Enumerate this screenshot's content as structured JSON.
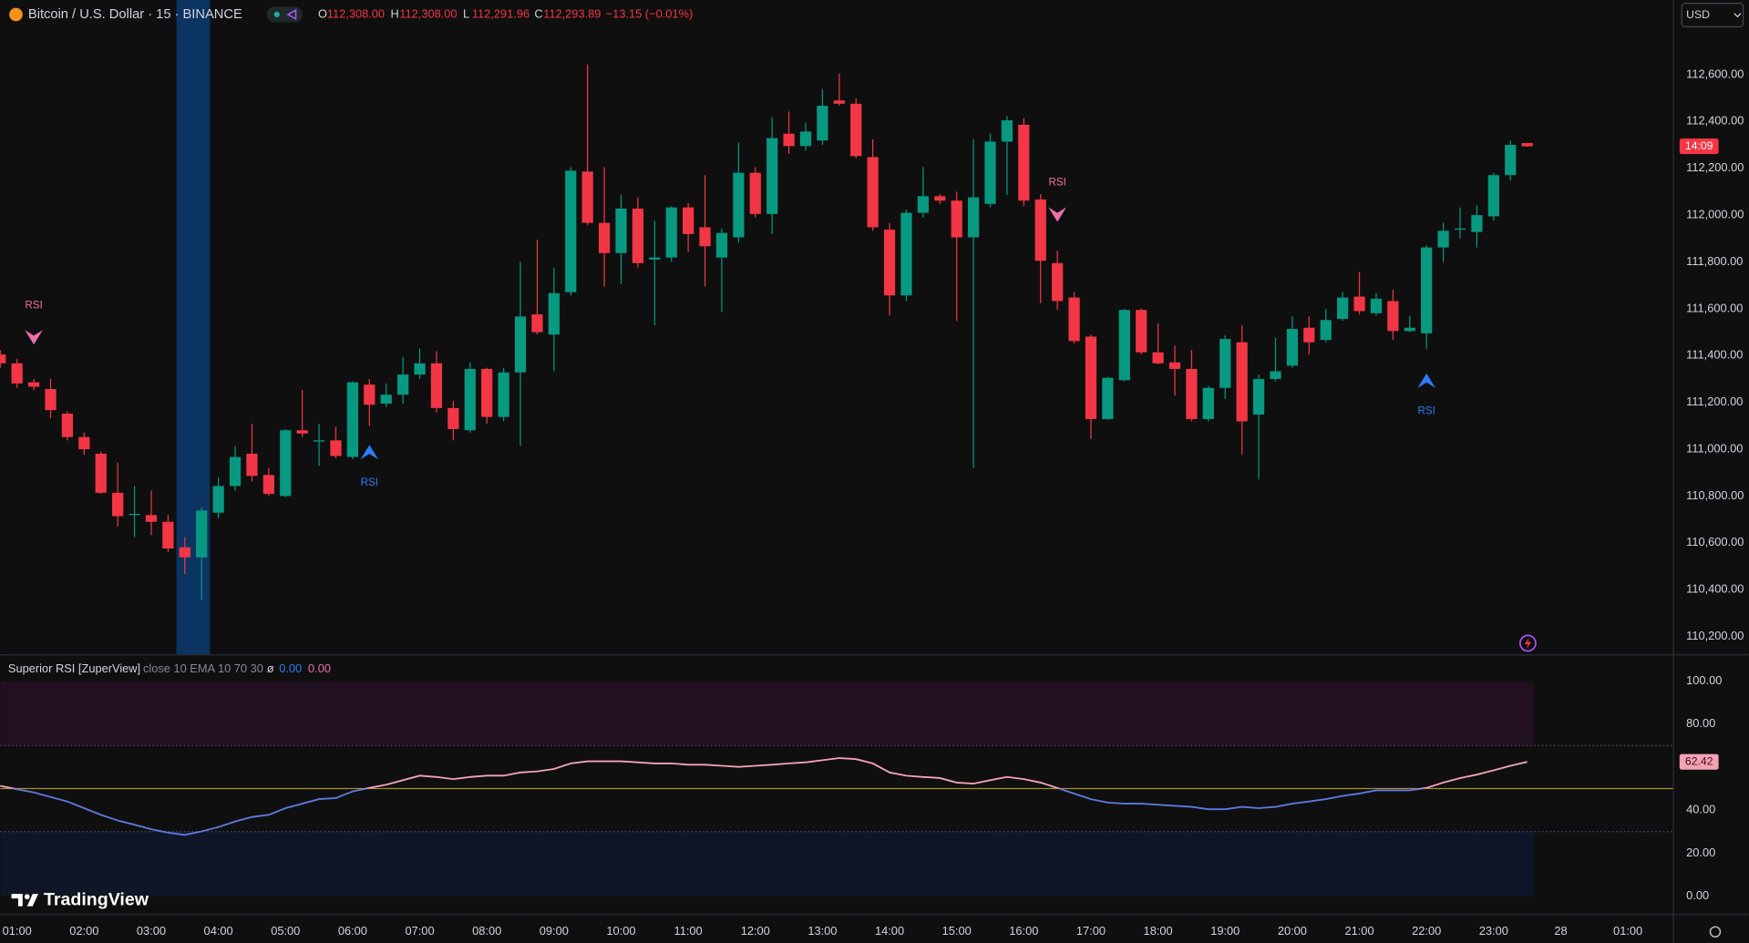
{
  "chart_data": [
    {
      "type": "candlestick",
      "title": "Bitcoin / U.S. Dollar · 15 · BINANCE",
      "legend": {
        "keys": [
          "O",
          "H",
          "L",
          "C"
        ],
        "values": [
          "112,308.00",
          "112,308.00",
          "112,291.96",
          "112,293.89"
        ],
        "change": "−13.15 (−0.01%)"
      },
      "currency": "USD",
      "countdown": "14:09",
      "brand": "TradingView",
      "up_color": "#089981",
      "down_color": "#f23645",
      "x": [
        0.75,
        1,
        1.25,
        1.5,
        1.75,
        2,
        2.25,
        2.5,
        2.75,
        3,
        3.25,
        3.5,
        3.75,
        4,
        4.25,
        4.5,
        4.75,
        5,
        5.25,
        5.5,
        5.75,
        6,
        6.25,
        6.5,
        6.75,
        7,
        7.25,
        7.5,
        7.75,
        8,
        8.25,
        8.5,
        8.75,
        9,
        9.25,
        9.5,
        9.75,
        10,
        10.25,
        10.5,
        10.75,
        11,
        11.25,
        11.5,
        11.75,
        12,
        12.25,
        12.5,
        12.75,
        13,
        13.25,
        13.5,
        13.75,
        14,
        14.25,
        14.5,
        14.75,
        15,
        15.25,
        15.5,
        15.75,
        16,
        16.25,
        16.5,
        16.75,
        17,
        17.25,
        17.5,
        17.75,
        18,
        18.25,
        18.5,
        18.75,
        19,
        19.25,
        19.5,
        19.75,
        20,
        20.25,
        20.5,
        20.75,
        21,
        21.25,
        21.5,
        21.75,
        22,
        22.25,
        22.5,
        22.75,
        23,
        23.25,
        23.5
      ],
      "open": [
        111405,
        111367,
        111286,
        111257,
        111152,
        111052,
        110981,
        110814,
        110719,
        110719,
        110690,
        110581,
        110538,
        110729,
        110843,
        110981,
        110890,
        110800,
        111081,
        111033,
        111038,
        110967,
        111276,
        111195,
        111233,
        111319,
        111367,
        111176,
        111081,
        111343,
        111138,
        111328,
        111576,
        111490,
        111671,
        112186,
        111967,
        111838,
        112028,
        111810,
        111819,
        112033,
        111948,
        111819,
        111905,
        112181,
        112005,
        112348,
        112295,
        112319,
        112490,
        112476,
        112248,
        111938,
        111657,
        112010,
        112081,
        112062,
        111905,
        112048,
        112314,
        112386,
        112067,
        111795,
        111648,
        111481,
        111129,
        111295,
        111595,
        111414,
        111371,
        111343,
        111129,
        111262,
        111457,
        111148,
        111300,
        111357,
        111519,
        111467,
        111557,
        111652,
        111581,
        111633,
        111505,
        111495,
        111862,
        111938,
        111928,
        111995,
        112171,
        112308
      ],
      "high": [
        111424,
        111386,
        111300,
        111300,
        111162,
        111071,
        110990,
        110943,
        110843,
        110824,
        110719,
        110624,
        110752,
        110881,
        111014,
        111109,
        110919,
        111086,
        111252,
        111109,
        111095,
        111290,
        111300,
        111281,
        111395,
        111429,
        111419,
        111205,
        111371,
        111348,
        111348,
        111800,
        111895,
        111776,
        112205,
        112643,
        112205,
        112086,
        112076,
        111976,
        112038,
        112052,
        112171,
        111943,
        112310,
        112205,
        112419,
        112443,
        112395,
        112538,
        112605,
        112500,
        112324,
        111967,
        112024,
        112205,
        112090,
        112100,
        112324,
        112348,
        112424,
        112414,
        112090,
        111848,
        111671,
        111490,
        111309,
        111600,
        111600,
        111538,
        111443,
        111424,
        111271,
        111486,
        111529,
        111319,
        111476,
        111567,
        111567,
        111600,
        111671,
        111757,
        111667,
        111681,
        111571,
        111871,
        111967,
        112033,
        112043,
        112181,
        112319,
        112308
      ],
      "low": [
        111348,
        111262,
        111252,
        111133,
        111038,
        110976,
        110809,
        110671,
        110624,
        110633,
        110562,
        110467,
        110357,
        110705,
        110824,
        110862,
        110800,
        110795,
        111052,
        110929,
        110962,
        110957,
        111100,
        111181,
        111195,
        111300,
        111157,
        111038,
        111071,
        111109,
        111119,
        111014,
        111490,
        111333,
        111657,
        111957,
        111695,
        111705,
        111776,
        111529,
        111800,
        111843,
        111695,
        111586,
        111881,
        111990,
        111919,
        112262,
        112276,
        112300,
        112467,
        112243,
        111933,
        111571,
        111633,
        111990,
        112048,
        111548,
        110919,
        112033,
        112086,
        112038,
        111624,
        111595,
        111452,
        111043,
        111124,
        111290,
        111405,
        111362,
        111229,
        111119,
        111119,
        111214,
        110976,
        110871,
        111290,
        111348,
        111405,
        111457,
        111548,
        111576,
        111571,
        111467,
        111500,
        111429,
        111800,
        111900,
        111862,
        111976,
        112148,
        112291.96
      ],
      "close": [
        111367,
        111281,
        111267,
        111167,
        111052,
        111000,
        110814,
        110714,
        110724,
        110690,
        110576,
        110538,
        110738,
        110843,
        110967,
        110886,
        110809,
        111081,
        111067,
        111038,
        110971,
        111286,
        111190,
        111233,
        111319,
        111367,
        111176,
        111086,
        111343,
        111138,
        111328,
        111567,
        111500,
        111667,
        112190,
        111967,
        111838,
        112028,
        111795,
        111819,
        112033,
        111919,
        111867,
        111924,
        112181,
        112005,
        112329,
        112295,
        112357,
        112467,
        112476,
        112252,
        111948,
        111657,
        112010,
        112081,
        112062,
        111905,
        112076,
        112314,
        112405,
        112062,
        111805,
        111633,
        111462,
        111129,
        111305,
        111595,
        111414,
        111367,
        111343,
        111129,
        111262,
        111471,
        111119,
        111300,
        111333,
        111514,
        111457,
        111552,
        111648,
        111590,
        111643,
        111505,
        111519,
        111862,
        111933,
        111943,
        112000,
        112171,
        112300,
        112293.89
      ],
      "highlight": {
        "range": [
          3.375,
          3.875
        ],
        "color": "#0c3463"
      },
      "signals": [
        {
          "x": 1.25,
          "price": 111476,
          "kind": "sell",
          "label": "RSI",
          "color": "#f06dab"
        },
        {
          "x": 6.25,
          "price": 110990,
          "kind": "buy",
          "label": "RSI",
          "color": "#2f7cf6"
        },
        {
          "x": 16.5,
          "price": 112000,
          "kind": "sell",
          "label": "RSI",
          "color": "#f06dab"
        },
        {
          "x": 22.0,
          "price": 111295,
          "kind": "buy",
          "label": "RSI",
          "color": "#2f7cf6"
        }
      ],
      "xlim": [
        0.751,
        25.67
      ],
      "xticks": [
        {
          "value": 1,
          "label": "01:00"
        },
        {
          "value": 2,
          "label": "02:00"
        },
        {
          "value": 3,
          "label": "03:00"
        },
        {
          "value": 4,
          "label": "04:00"
        },
        {
          "value": 5,
          "label": "05:00"
        },
        {
          "value": 6,
          "label": "06:00"
        },
        {
          "value": 7,
          "label": "07:00"
        },
        {
          "value": 8,
          "label": "08:00"
        },
        {
          "value": 9,
          "label": "09:00"
        },
        {
          "value": 10,
          "label": "10:00"
        },
        {
          "value": 11,
          "label": "11:00"
        },
        {
          "value": 12,
          "label": "12:00"
        },
        {
          "value": 13,
          "label": "13:00"
        },
        {
          "value": 14,
          "label": "14:00"
        },
        {
          "value": 15,
          "label": "15:00"
        },
        {
          "value": 16,
          "label": "16:00"
        },
        {
          "value": 17,
          "label": "17:00"
        },
        {
          "value": 18,
          "label": "18:00"
        },
        {
          "value": 19,
          "label": "19:00"
        },
        {
          "value": 20,
          "label": "20:00"
        },
        {
          "value": 21,
          "label": "21:00"
        },
        {
          "value": 22,
          "label": "22:00"
        },
        {
          "value": 23,
          "label": "23:00"
        },
        {
          "value": 24,
          "label": "28"
        },
        {
          "value": 25,
          "label": "01:00"
        }
      ],
      "ylim": [
        110124,
        112919
      ],
      "yticks": [
        {
          "value": 110200,
          "label": "110,200.00"
        },
        {
          "value": 110400,
          "label": "110,400.00"
        },
        {
          "value": 110600,
          "label": "110,600.00"
        },
        {
          "value": 110800,
          "label": "110,800.00"
        },
        {
          "value": 111000,
          "label": "111,000.00"
        },
        {
          "value": 111200,
          "label": "111,200.00"
        },
        {
          "value": 111400,
          "label": "111,400.00"
        },
        {
          "value": 111600,
          "label": "111,600.00"
        },
        {
          "value": 111800,
          "label": "111,800.00"
        },
        {
          "value": 112000,
          "label": "112,000.00"
        },
        {
          "value": 112200,
          "label": "112,200.00"
        },
        {
          "value": 112400,
          "label": "112,400.00"
        },
        {
          "value": 112600,
          "label": "112,600.00"
        }
      ],
      "grid": false
    },
    {
      "type": "line",
      "title": "Superior RSI [ZuperView]",
      "subtitle": "close 10 EMA 10 70 30",
      "status": {
        "symbol": "ø",
        "values": [
          "0.00",
          "0.00"
        ],
        "colors": [
          "#2f7cf6",
          "#f06dab"
        ]
      },
      "x": [
        0.75,
        1,
        1.25,
        1.5,
        1.75,
        2,
        2.25,
        2.5,
        2.75,
        3,
        3.25,
        3.5,
        3.75,
        4,
        4.25,
        4.5,
        4.75,
        5,
        5.25,
        5.5,
        5.75,
        6,
        6.25,
        6.5,
        6.75,
        7,
        7.25,
        7.5,
        7.75,
        8,
        8.25,
        8.5,
        8.75,
        9,
        9.25,
        9.5,
        9.75,
        10,
        10.25,
        10.5,
        10.75,
        11,
        11.25,
        11.5,
        11.75,
        12,
        12.25,
        12.5,
        12.75,
        13,
        13.25,
        13.5,
        13.75,
        14,
        14.25,
        14.5,
        14.75,
        15,
        15.25,
        15.5,
        15.75,
        16,
        16.25,
        16.5,
        16.75,
        17,
        17.25,
        17.5,
        17.75,
        18,
        18.25,
        18.5,
        18.75,
        19,
        19.25,
        19.5,
        19.75,
        20,
        20.25,
        20.5,
        20.75,
        21,
        21.25,
        21.5,
        21.75,
        22,
        22.25,
        22.5,
        22.75,
        23,
        23.25,
        23.5
      ],
      "values": [
        51.3,
        49.7,
        48.2,
        46.1,
        44.0,
        40.9,
        37.8,
        35.2,
        33.2,
        31.1,
        29.5,
        28.5,
        30.1,
        32.1,
        34.7,
        36.8,
        37.8,
        40.9,
        43.0,
        45.1,
        45.6,
        48.7,
        50.3,
        51.8,
        53.9,
        56.0,
        55.4,
        54.4,
        55.4,
        56.0,
        56.0,
        57.5,
        58.0,
        59.1,
        61.7,
        62.7,
        62.7,
        62.7,
        62.2,
        61.7,
        61.7,
        61.1,
        61.1,
        60.6,
        60.1,
        60.6,
        61.1,
        61.7,
        62.2,
        63.2,
        64.2,
        63.7,
        61.7,
        57.5,
        56.0,
        55.4,
        54.9,
        52.8,
        52.3,
        53.9,
        55.4,
        54.4,
        52.8,
        50.3,
        47.7,
        45.1,
        43.5,
        43.0,
        43.0,
        42.5,
        42.0,
        41.5,
        40.4,
        40.4,
        41.5,
        40.9,
        41.5,
        43.0,
        44.0,
        45.1,
        46.6,
        47.7,
        49.2,
        49.2,
        49.2,
        50.3,
        52.8,
        54.9,
        56.5,
        58.5,
        60.6,
        62.42
      ],
      "last_label": "62.42",
      "color_high": "#f4a3b5",
      "color_low": "#5f78e0",
      "bands": [
        {
          "range": [
            70,
            100
          ],
          "color": "#21101f"
        },
        {
          "range": [
            0,
            30
          ],
          "color": "#0e1627"
        }
      ],
      "levels": [
        {
          "value": 70,
          "color": "#5b4a66",
          "dashed": true
        },
        {
          "value": 30,
          "color": "#3d4a66",
          "dashed": true
        },
        {
          "value": 50,
          "color": "#a38d2f",
          "dashed": false
        }
      ],
      "ylim": [
        -8.3,
        111.9
      ],
      "yticks": [
        {
          "value": 0,
          "label": "0.00"
        },
        {
          "value": 20,
          "label": "20.00"
        },
        {
          "value": 40,
          "label": "40.00"
        },
        {
          "value": 80,
          "label": "80.00"
        },
        {
          "value": 100,
          "label": "100.00"
        }
      ]
    }
  ]
}
